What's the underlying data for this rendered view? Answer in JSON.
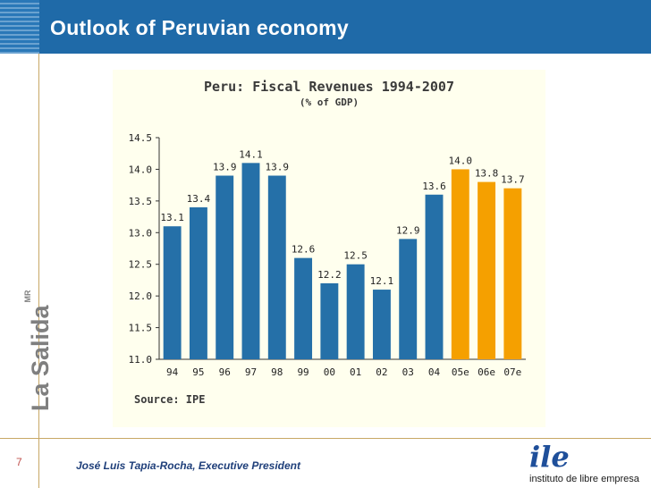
{
  "slide": {
    "title": "Outlook of Peruvian economy",
    "brand_vertical": "La Salida",
    "brand_mark": "MR",
    "page_number": "7",
    "footer_name": "José Luis Tapia-Rocha, Executive",
    "footer_role": "President",
    "logo_mark": "ile",
    "logo_text": "instituto de libre empresa"
  },
  "colors": {
    "header_blue": "#1f6aa8",
    "bar_blue": "#2570a8",
    "bar_orange": "#f5a000",
    "chart_bg": "#ffffee"
  },
  "chart_data": {
    "type": "bar",
    "title": "Peru: Fiscal Revenues 1994-2007",
    "subtitle": "(% of GDP)",
    "source": "Source: IPE",
    "categories": [
      "94",
      "95",
      "96",
      "97",
      "98",
      "99",
      "00",
      "01",
      "02",
      "03",
      "04",
      "05e",
      "06e",
      "07e"
    ],
    "values": [
      13.1,
      13.4,
      13.9,
      14.1,
      13.9,
      12.6,
      12.2,
      12.5,
      12.1,
      12.9,
      13.6,
      14.0,
      13.8,
      13.7
    ],
    "estimated": [
      false,
      false,
      false,
      false,
      false,
      false,
      false,
      false,
      false,
      false,
      false,
      true,
      true,
      true
    ],
    "ylim": [
      11.0,
      14.5
    ],
    "yticks": [
      "11.0",
      "11.5",
      "12.0",
      "12.5",
      "13.0",
      "13.5",
      "14.0",
      "14.5"
    ],
    "xlabel": "",
    "ylabel": ""
  }
}
